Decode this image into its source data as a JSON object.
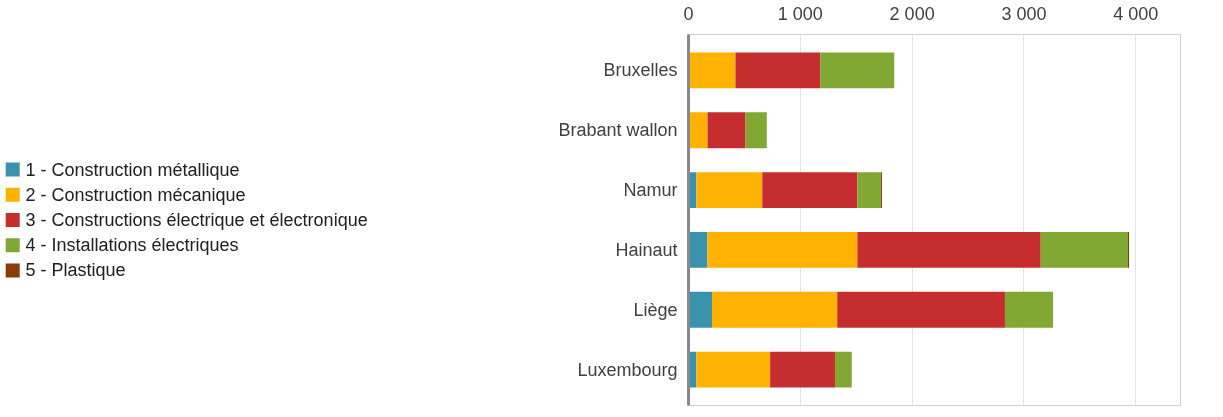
{
  "chart_data": {
    "type": "bar",
    "orientation": "horizontal",
    "stacked": true,
    "categories": [
      "Bruxelles",
      "Brabant wallon",
      "Namur",
      "Hainaut",
      "Liège",
      "Luxembourg"
    ],
    "series": [
      {
        "name": "1 - Construction métallique",
        "color": "#3a93ac",
        "values": [
          10,
          0,
          70,
          170,
          210,
          70
        ]
      },
      {
        "name": "2 - Construction mécanique",
        "color": "#ffb300",
        "values": [
          410,
          170,
          590,
          1340,
          1120,
          660
        ]
      },
      {
        "name": "3 - Constructions électrique et électronique",
        "color": "#c62d2f",
        "values": [
          760,
          340,
          850,
          1640,
          1500,
          580
        ]
      },
      {
        "name": "4 - Installations électriques",
        "color": "#82a834",
        "values": [
          660,
          190,
          210,
          780,
          430,
          150
        ]
      },
      {
        "name": "5 - Plastique",
        "color": "#8b3a0a",
        "values": [
          0,
          0,
          10,
          10,
          0,
          0
        ]
      }
    ],
    "xlim": [
      0,
      4400
    ],
    "xticks": [
      {
        "value": 0,
        "label": "0"
      },
      {
        "value": 1000,
        "label": "1 000"
      },
      {
        "value": 2000,
        "label": "2 000"
      },
      {
        "value": 3000,
        "label": "3 000"
      },
      {
        "value": 4000,
        "label": "4 000"
      }
    ],
    "grid": "x",
    "legend": "left"
  }
}
